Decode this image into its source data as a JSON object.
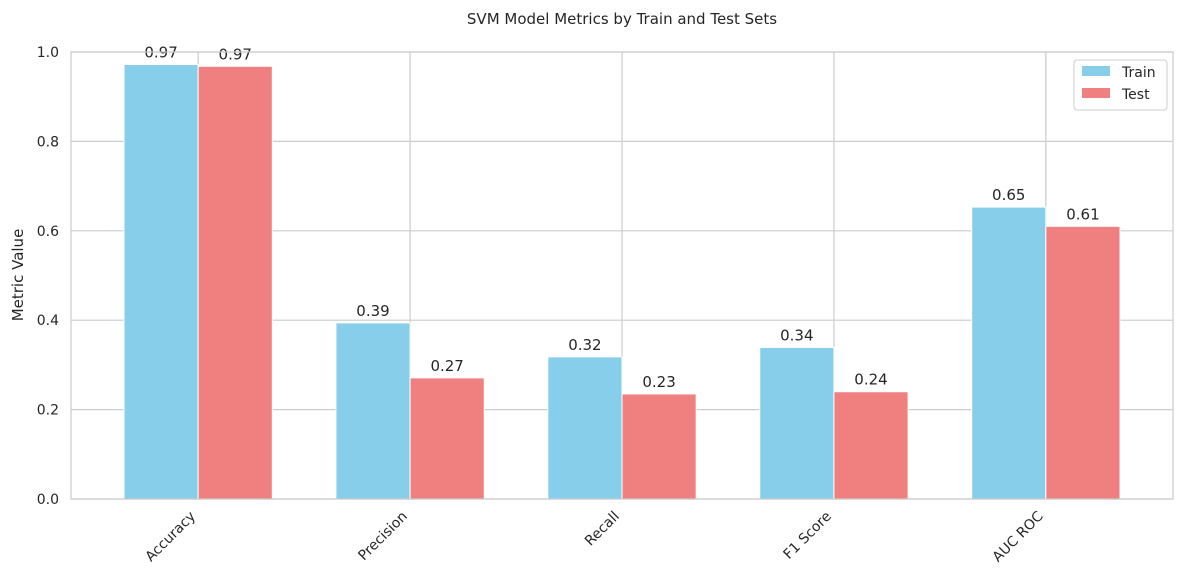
{
  "chart_data": {
    "type": "bar",
    "title": "SVM Model Metrics by Train and Test Sets",
    "xlabel": "",
    "ylabel": "Metric Value",
    "ylim": [
      0,
      1.0
    ],
    "yticks": [
      "0.0",
      "0.2",
      "0.4",
      "0.6",
      "0.8",
      "1.0"
    ],
    "categories": [
      "Accuracy",
      "Precision",
      "Recall",
      "F1 Score",
      "AUC ROC"
    ],
    "series": [
      {
        "name": "Train",
        "color": "#87ceeb",
        "values": [
          0.972,
          0.394,
          0.318,
          0.339,
          0.653
        ],
        "labels": [
          "0.97",
          "0.39",
          "0.32",
          "0.34",
          "0.65"
        ]
      },
      {
        "name": "Test",
        "color": "#f08080",
        "values": [
          0.968,
          0.271,
          0.235,
          0.24,
          0.61
        ],
        "labels": [
          "0.97",
          "0.27",
          "0.23",
          "0.24",
          "0.61"
        ]
      }
    ],
    "grid": true,
    "legend_position": "top-right"
  }
}
